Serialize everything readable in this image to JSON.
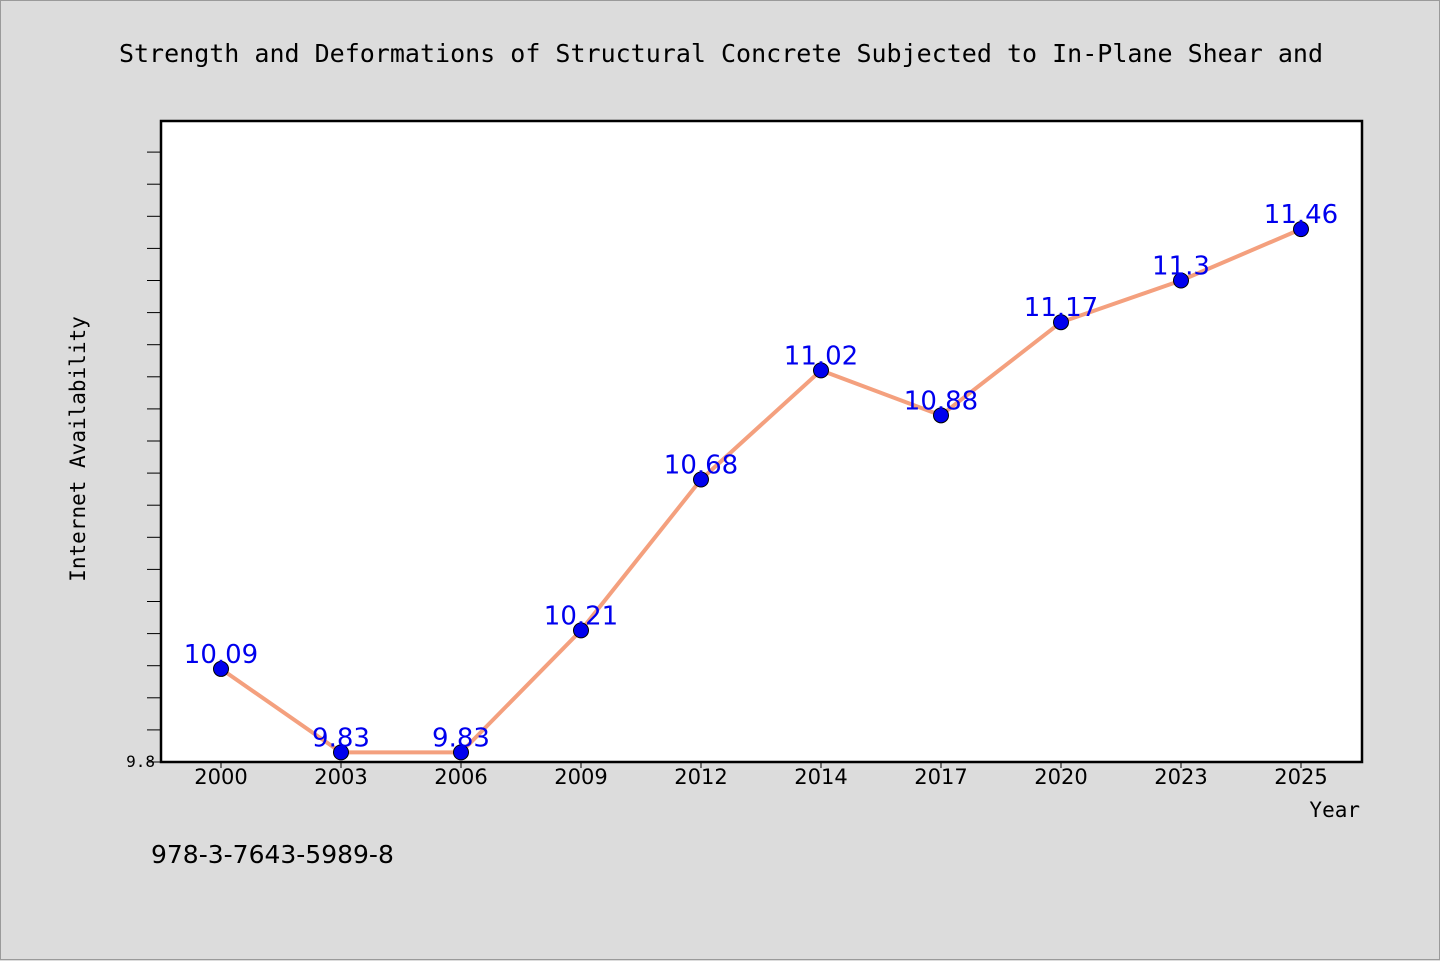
{
  "chart_data": {
    "type": "line",
    "title": "Strength and Deformations of Structural Concrete Subjected to In-Plane Shear and",
    "xlabel": "Year",
    "ylabel": "Internet Availability",
    "categories": [
      "2000",
      "2003",
      "2006",
      "2009",
      "2012",
      "2014",
      "2017",
      "2020",
      "2023",
      "2025"
    ],
    "series": [
      {
        "values": [
          10.09,
          9.83,
          9.83,
          10.21,
          10.68,
          11.02,
          10.88,
          11.17,
          11.3,
          11.46
        ],
        "labels": [
          "10.09",
          "9.83",
          "9.83",
          "10.21",
          "10.68",
          "11.02",
          "10.88",
          "11.17",
          "11.3",
          "11.46"
        ],
        "line_color": "#f4a07e",
        "marker_color": "#0000ee",
        "label_color": "#0000ee"
      }
    ],
    "ylim": [
      9.8,
      11.8
    ],
    "y_tick_labels": [
      "9.8"
    ],
    "grid": false,
    "legend": "none"
  },
  "footer": {
    "isbn": "978-3-7643-5989-8"
  },
  "colors": {
    "background": "#dcdcdc",
    "plot_background": "#ffffff",
    "axis": "#000000"
  }
}
